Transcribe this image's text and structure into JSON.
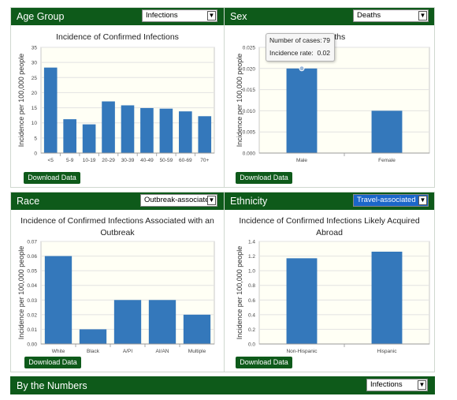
{
  "panels": {
    "age": {
      "header": "Age Group",
      "select": "Infections",
      "download": "Download Data"
    },
    "sex": {
      "header": "Sex",
      "select": "Deaths",
      "download": "Download Data",
      "tooltip": {
        "cases_label": "Number of cases:",
        "cases_value": "79",
        "rate_label": "Incidence rate:",
        "rate_value": "0.02"
      }
    },
    "race": {
      "header": "Race",
      "select": "Outbreak-associated",
      "download": "Download Data"
    },
    "ethnicity": {
      "header": "Ethnicity",
      "select": "Travel-associated",
      "download": "Download Data"
    }
  },
  "bottom": {
    "header": "By the Numbers",
    "select": "Infections"
  },
  "colors": {
    "header_green": "#0e5a1a",
    "bar_blue": "#3478bb",
    "plot_bg": "#fffff5"
  },
  "chart_data": [
    {
      "type": "bar",
      "title": "Incidence of Confirmed Infections",
      "title_lines": [
        "Incidence of Confirmed Infections"
      ],
      "xlabel": "",
      "ylabel": "Incidence per 100,000 people",
      "categories": [
        "<5",
        "5-9",
        "10-19",
        "20-29",
        "30-39",
        "40-49",
        "50-59",
        "60-69",
        "70+"
      ],
      "values": [
        28.3,
        11.2,
        9.5,
        17.1,
        15.8,
        14.9,
        14.7,
        13.8,
        12.2
      ],
      "ylim": [
        0,
        35
      ],
      "yticks": [
        "0",
        "5",
        "10",
        "15",
        "20",
        "25",
        "30",
        "35"
      ],
      "ystep": 5,
      "decimals": 0,
      "grid": true
    },
    {
      "type": "bar",
      "title": "Incidence of Deaths",
      "title_lines": [
        "Deaths"
      ],
      "xlabel": "",
      "ylabel": "Incidence per 100,000 people",
      "categories": [
        "Male",
        "Female"
      ],
      "values": [
        0.02,
        0.01
      ],
      "ylim": [
        0,
        0.025
      ],
      "yticks": [
        "0.000",
        "0.005",
        "0.010",
        "0.015",
        "0.020",
        "0.025"
      ],
      "ystep": 0.005,
      "decimals": 3,
      "grid": true
    },
    {
      "type": "bar",
      "title": "Incidence of Confirmed Infections Associated with an Outbreak",
      "title_lines": [
        "Incidence of Confirmed Infections Associated with an",
        "Outbreak"
      ],
      "xlabel": "",
      "ylabel": "Incidence per 100,000 people",
      "categories": [
        "White",
        "Black",
        "A/PI",
        "AI/AN",
        "Multiple"
      ],
      "values": [
        0.06,
        0.01,
        0.03,
        0.03,
        0.02
      ],
      "ylim": [
        0,
        0.07
      ],
      "yticks": [
        "0.00",
        "0.01",
        "0.02",
        "0.03",
        "0.04",
        "0.05",
        "0.06",
        "0.07"
      ],
      "ystep": 0.01,
      "decimals": 2,
      "grid": true
    },
    {
      "type": "bar",
      "title": "Incidence of Confirmed Infections Likely Acquired Abroad",
      "title_lines": [
        "Incidence of Confirmed Infections Likely Acquired",
        "Abroad"
      ],
      "xlabel": "",
      "ylabel": "Incidence per 100,000 people",
      "categories": [
        "Non-Hispanic",
        "Hispanic"
      ],
      "values": [
        1.17,
        1.26
      ],
      "ylim": [
        0,
        1.4
      ],
      "yticks": [
        "0.0",
        "0.2",
        "0.4",
        "0.6",
        "0.8",
        "1.0",
        "1.2",
        "1.4"
      ],
      "ystep": 0.2,
      "decimals": 1,
      "grid": true
    }
  ]
}
